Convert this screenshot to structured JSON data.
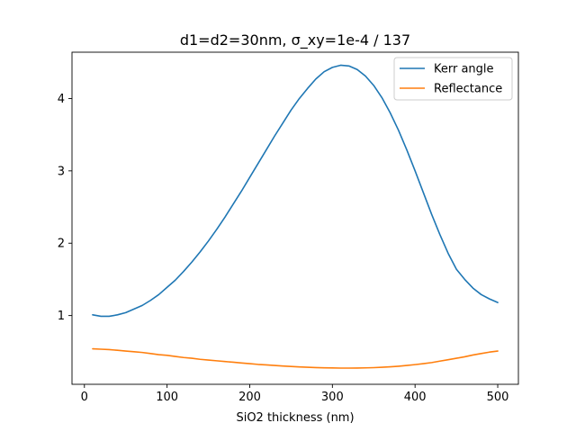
{
  "chart_data": {
    "type": "line",
    "title": "d1=d2=30nm, σ_xy=1e-4 / 137",
    "xlabel": "SiO2 thickness (nm)",
    "ylabel": "",
    "xlim": [
      -15,
      525
    ],
    "ylim": [
      0.05,
      4.64
    ],
    "xticks": [
      0,
      100,
      200,
      300,
      400,
      500
    ],
    "yticks": [
      1,
      2,
      3,
      4
    ],
    "grid": false,
    "legend_position": "top-right",
    "series": [
      {
        "name": "Kerr angle",
        "color": "#1f77b4",
        "x": [
          10,
          20,
          30,
          40,
          50,
          60,
          70,
          80,
          90,
          100,
          110,
          120,
          130,
          140,
          150,
          160,
          170,
          180,
          190,
          200,
          210,
          220,
          230,
          240,
          250,
          260,
          270,
          280,
          290,
          300,
          310,
          320,
          330,
          340,
          350,
          360,
          370,
          380,
          390,
          400,
          410,
          420,
          430,
          440,
          450,
          460,
          470,
          480,
          490,
          500
        ],
        "values": [
          1.01,
          0.99,
          0.99,
          1.01,
          1.04,
          1.09,
          1.14,
          1.21,
          1.29,
          1.39,
          1.49,
          1.61,
          1.74,
          1.88,
          2.03,
          2.19,
          2.36,
          2.54,
          2.72,
          2.91,
          3.1,
          3.29,
          3.48,
          3.66,
          3.84,
          4.0,
          4.14,
          4.27,
          4.37,
          4.43,
          4.46,
          4.45,
          4.4,
          4.31,
          4.18,
          4.01,
          3.8,
          3.56,
          3.29,
          3.0,
          2.7,
          2.4,
          2.12,
          1.86,
          1.64,
          1.5,
          1.38,
          1.29,
          1.23,
          1.18
        ]
      },
      {
        "name": "Reflectance",
        "color": "#ff7f0e",
        "x": [
          10,
          20,
          30,
          40,
          50,
          60,
          70,
          80,
          90,
          100,
          110,
          120,
          130,
          140,
          150,
          160,
          170,
          180,
          190,
          200,
          210,
          220,
          230,
          240,
          250,
          260,
          270,
          280,
          290,
          300,
          310,
          320,
          330,
          340,
          350,
          360,
          370,
          380,
          390,
          400,
          410,
          420,
          430,
          440,
          450,
          460,
          470,
          480,
          490,
          500
        ],
        "values": [
          0.54,
          0.535,
          0.53,
          0.52,
          0.51,
          0.5,
          0.49,
          0.475,
          0.46,
          0.45,
          0.435,
          0.42,
          0.41,
          0.395,
          0.385,
          0.375,
          0.365,
          0.355,
          0.345,
          0.335,
          0.325,
          0.318,
          0.31,
          0.303,
          0.297,
          0.29,
          0.285,
          0.281,
          0.278,
          0.276,
          0.274,
          0.274,
          0.275,
          0.277,
          0.28,
          0.285,
          0.292,
          0.3,
          0.31,
          0.322,
          0.335,
          0.35,
          0.37,
          0.39,
          0.41,
          0.43,
          0.455,
          0.475,
          0.495,
          0.51
        ]
      }
    ]
  }
}
